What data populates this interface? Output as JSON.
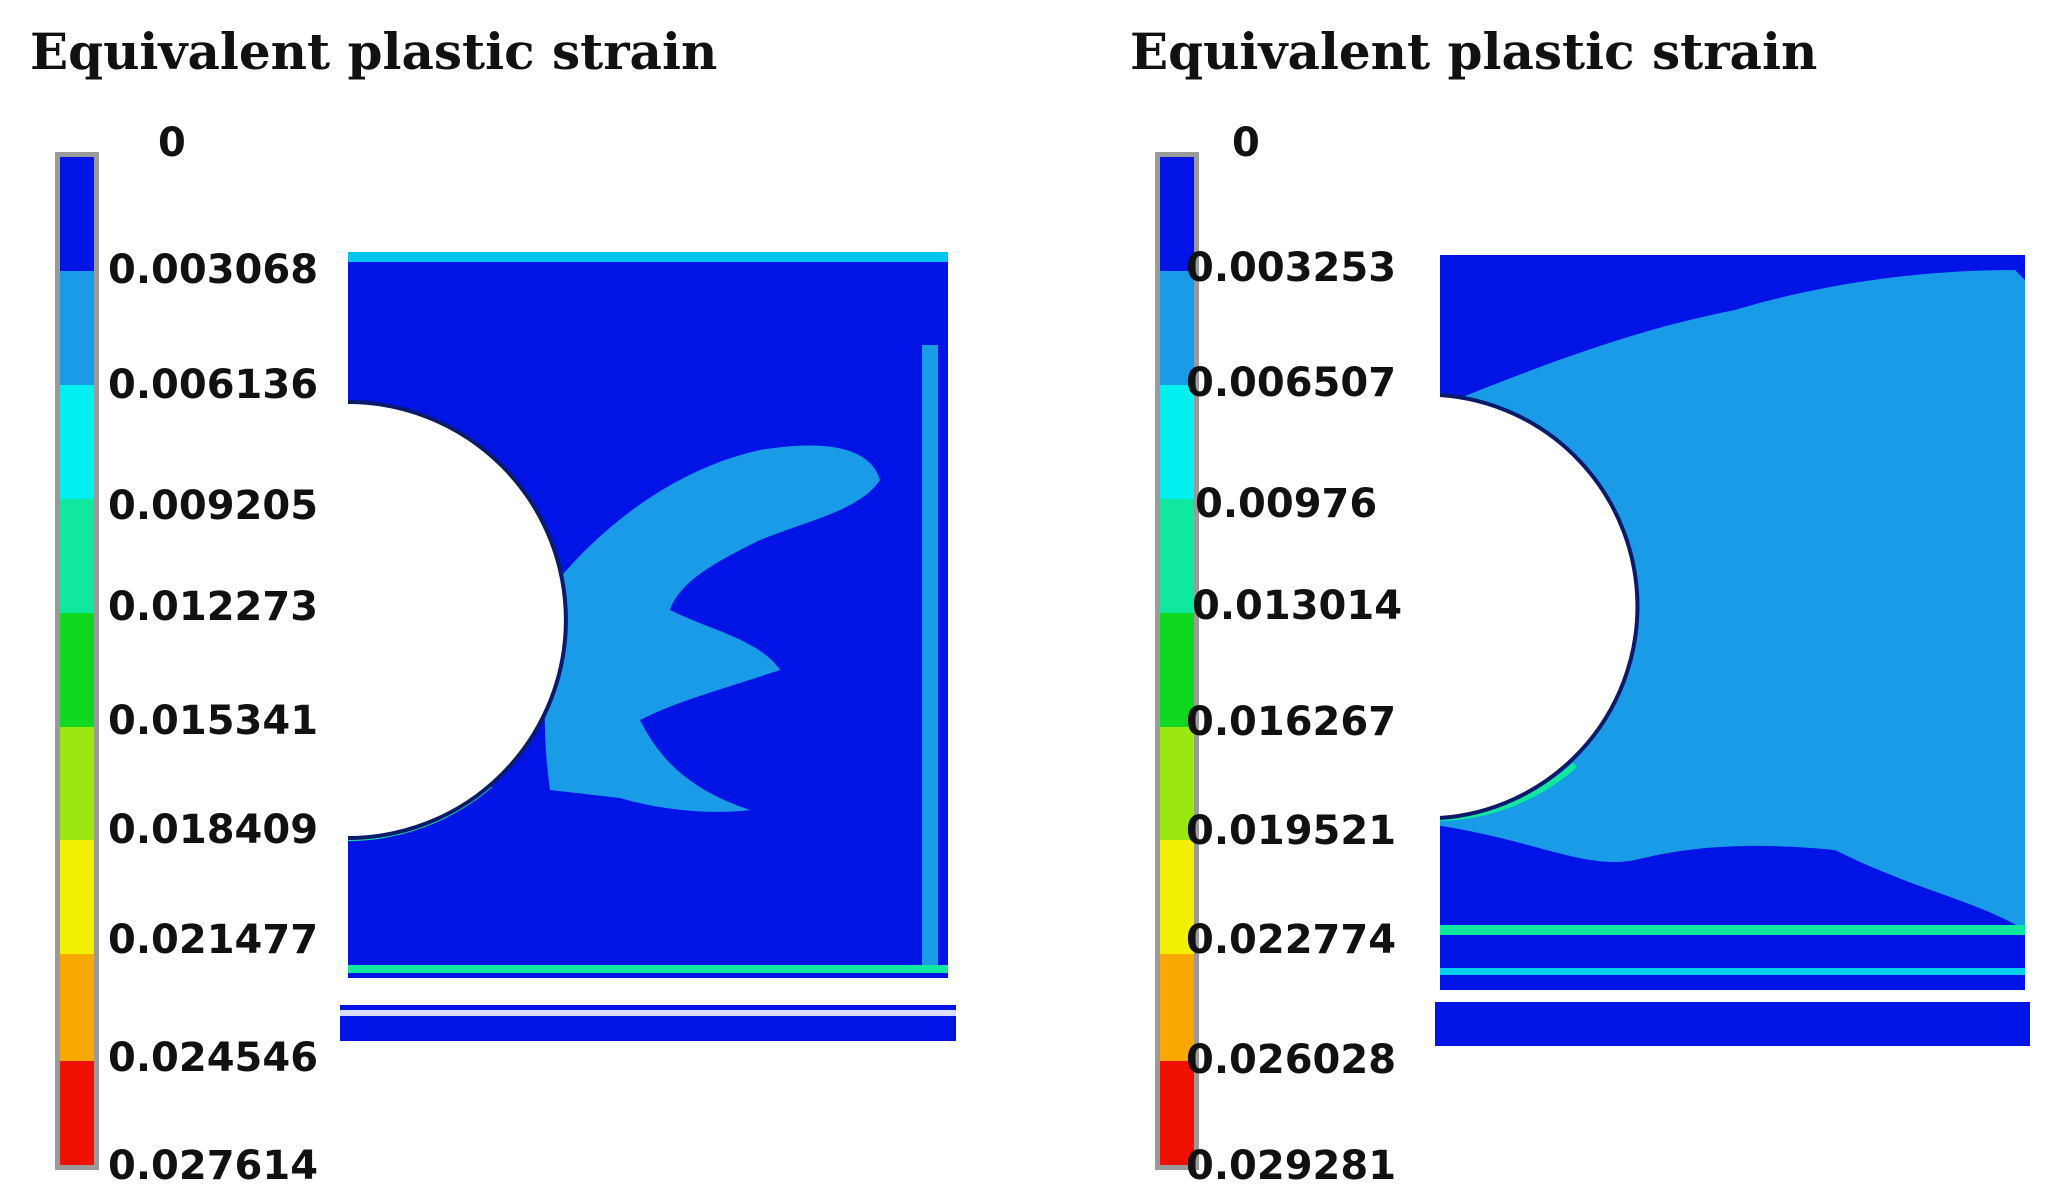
{
  "panels": [
    {
      "title": "Equivalent plastic strain",
      "legend_labels": [
        "0",
        "0.003068",
        "0.006136",
        "0.009205",
        "0.012273",
        "0.015341",
        "0.018409",
        "0.021477",
        "0.024546",
        "0.027614"
      ]
    },
    {
      "title": "Equivalent plastic strain",
      "legend_labels": [
        "0",
        "0.003253",
        "0.006507",
        "0.00976",
        "0.013014",
        "0.016267",
        "0.019521",
        "0.022774",
        "0.026028",
        "0.029281"
      ]
    }
  ],
  "colors": {
    "band_colors": [
      "#0014e6",
      "#1a9be8",
      "#00f0f0",
      "#10e8a0",
      "#10d820",
      "#9ae810",
      "#f0f000",
      "#f8a800",
      "#f01000"
    ],
    "strain_low": "#0014e6",
    "strain_mid": "#1a9be8",
    "strain_high_edge": "#10e8a0"
  }
}
